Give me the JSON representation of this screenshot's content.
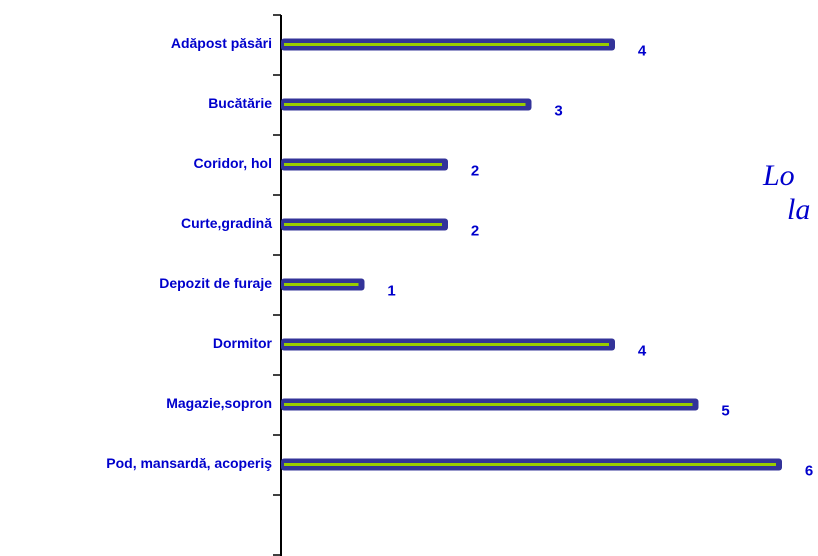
{
  "chart_data": {
    "type": "bar",
    "orientation": "horizontal",
    "categories": [
      "Adăpost păsări",
      "Bucătărie",
      "Coridor, hol",
      "Curte,gradină",
      "Depozit de furaje",
      "Dormitor",
      "Magazie,sopron",
      "Pod, mansardă, acoperiş"
    ],
    "values": [
      4,
      3,
      2,
      2,
      1,
      4,
      5,
      6
    ],
    "color": "#333399",
    "inner_color": "#99cc00",
    "xlim": [
      0,
      6
    ],
    "annotations": [
      "Lo",
      "la"
    ]
  }
}
